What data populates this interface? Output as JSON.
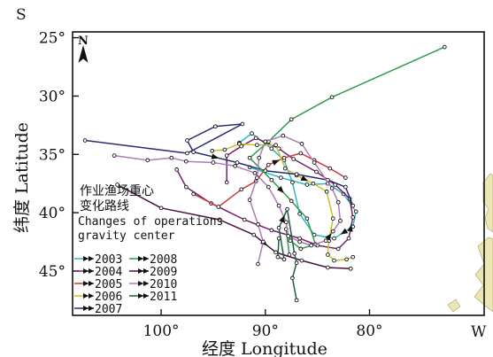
{
  "corner_labels": {
    "top_left": "S",
    "bottom_right": "W",
    "north_arrow": "N"
  },
  "axes": {
    "xlabel": "经度 Longitude",
    "ylabel": "纬度 Latitude",
    "xticks": [
      "100°",
      "90°",
      "80°"
    ],
    "yticks": [
      "25°",
      "30°",
      "35°",
      "40°",
      "45°"
    ]
  },
  "title": {
    "cn_line1": "作业渔场重心",
    "cn_line2": "变化路线",
    "en_line1": "Changes of operations",
    "en_line2": "gravity center"
  },
  "legend_items": [
    {
      "label": "2003",
      "color": "#2fb9c8"
    },
    {
      "label": "2004",
      "color": "#7a1d72"
    },
    {
      "label": "2005",
      "color": "#c83a3a"
    },
    {
      "label": "2006",
      "color": "#c9bf2b"
    },
    {
      "label": "2007",
      "color": "#2a2b72"
    },
    {
      "label": "2008",
      "color": "#2e9e4d"
    },
    {
      "label": "2009",
      "color": "#4a1040"
    },
    {
      "label": "2010",
      "color": "#b07ab9"
    },
    {
      "label": "2011",
      "color": "#1f5e43"
    }
  ],
  "chart_data": {
    "type": "line",
    "xlabel": "经度 Longitude",
    "ylabel": "纬度 Latitude",
    "x_unit": "degrees longitude (axis reversed, increasing leftward)",
    "y_unit": "degrees latitude (axis reversed, increasing downward)",
    "xlim": [
      108.5,
      69.0
    ],
    "ylim": [
      24.5,
      48.8
    ],
    "series": [
      {
        "name": "2003",
        "color": "#2fb9c8",
        "points": [
          [
            91.5,
            36.1
          ],
          [
            88.5,
            37.0
          ],
          [
            86.0,
            37.6
          ],
          [
            84.0,
            37.5
          ],
          [
            82.5,
            38.4
          ],
          [
            81.3,
            39.9
          ],
          [
            81.6,
            41.2
          ],
          [
            83.4,
            42.2
          ],
          [
            85.3,
            41.9
          ],
          [
            86.7,
            40.1
          ],
          [
            87.4,
            37.4
          ],
          [
            88.2,
            35.5
          ],
          [
            89.4,
            34.5
          ],
          [
            91.3,
            33.2
          ],
          [
            92.5,
            34.0
          ]
        ]
      },
      {
        "name": "2004",
        "color": "#7a1d72",
        "points": [
          [
            98.5,
            36.3
          ],
          [
            97.6,
            37.8
          ],
          [
            95.2,
            39.2
          ],
          [
            92.0,
            40.6
          ],
          [
            89.4,
            41.5
          ],
          [
            86.7,
            42.2
          ],
          [
            85.0,
            42.8
          ],
          [
            83.0,
            43.1
          ],
          [
            82.0,
            42.2
          ],
          [
            81.6,
            40.4
          ],
          [
            81.9,
            38.8
          ],
          [
            83.3,
            37.6
          ],
          [
            85.1,
            36.5
          ],
          [
            87.3,
            35.4
          ],
          [
            88.7,
            34.5
          ],
          [
            90.9,
            33.6
          ],
          [
            92.3,
            34.3
          ],
          [
            93.7,
            35.1
          ],
          [
            93.7,
            37.4
          ]
        ]
      },
      {
        "name": "2005",
        "color": "#c83a3a",
        "points": [
          [
            96.9,
            38.4
          ],
          [
            94.5,
            39.5
          ],
          [
            92.3,
            38.0
          ],
          [
            90.9,
            37.3
          ],
          [
            89.7,
            35.9
          ],
          [
            88.2,
            35.3
          ],
          [
            86.6,
            34.9
          ],
          [
            85.3,
            35.5
          ],
          [
            83.8,
            36.2
          ],
          [
            82.3,
            37.0
          ]
        ]
      },
      {
        "name": "2006",
        "color": "#c9bf2b",
        "points": [
          [
            95.1,
            34.7
          ],
          [
            93.9,
            34.6
          ],
          [
            92.5,
            34.1
          ],
          [
            90.8,
            34.2
          ],
          [
            89.0,
            34.2
          ],
          [
            88.1,
            36.2
          ],
          [
            87.0,
            36.8
          ],
          [
            85.4,
            37.5
          ],
          [
            84.1,
            38.2
          ],
          [
            83.5,
            40.5
          ],
          [
            83.9,
            42.4
          ],
          [
            84.0,
            43.6
          ],
          [
            83.4,
            44.1
          ],
          [
            82.2,
            44.0
          ],
          [
            81.6,
            43.8
          ]
        ]
      },
      {
        "name": "2007",
        "color": "#2a2b72",
        "points": [
          [
            107.3,
            33.8
          ],
          [
            97.5,
            34.9
          ],
          [
            92.2,
            32.4
          ],
          [
            94.8,
            32.6
          ],
          [
            97.5,
            33.8
          ],
          [
            96.9,
            34.8
          ],
          [
            92.7,
            35.7
          ],
          [
            90.0,
            36.4
          ],
          [
            87.0,
            36.7
          ],
          [
            84.0,
            37.2
          ],
          [
            82.3,
            37.8
          ],
          [
            81.6,
            39.4
          ]
        ]
      },
      {
        "name": "2008",
        "color": "#2e9e4d",
        "points": [
          [
            72.8,
            25.8
          ],
          [
            83.6,
            30.1
          ],
          [
            87.5,
            32.0
          ],
          [
            89.7,
            33.9
          ],
          [
            91.5,
            35.3
          ],
          [
            89.4,
            37.2
          ],
          [
            87.5,
            39.0
          ],
          [
            86.0,
            40.5
          ],
          [
            85.2,
            42.7
          ],
          [
            86.6,
            43.1
          ],
          [
            87.6,
            42.4
          ],
          [
            88.0,
            41.4
          ],
          [
            87.7,
            43.6
          ]
        ]
      },
      {
        "name": "2009",
        "color": "#4a1040",
        "points": [
          [
            104.2,
            37.6
          ],
          [
            100.0,
            39.6
          ],
          [
            94.4,
            40.6
          ],
          [
            91.1,
            41.9
          ],
          [
            89.0,
            43.4
          ],
          [
            86.5,
            44.1
          ],
          [
            84.0,
            44.7
          ],
          [
            81.8,
            44.8
          ]
        ]
      },
      {
        "name": "2010",
        "color": "#b07ab9",
        "points": [
          [
            104.5,
            35.1
          ],
          [
            101.3,
            35.5
          ],
          [
            99.0,
            35.3
          ],
          [
            97.6,
            35.6
          ],
          [
            95.0,
            35.7
          ],
          [
            92.9,
            36.0
          ],
          [
            91.0,
            36.6
          ],
          [
            89.7,
            37.8
          ],
          [
            88.7,
            39.4
          ],
          [
            88.0,
            40.8
          ],
          [
            87.8,
            42.0
          ],
          [
            86.7,
            42.5
          ],
          [
            85.6,
            42.8
          ],
          [
            84.2,
            42.4
          ],
          [
            83.5,
            41.6
          ],
          [
            82.8,
            40.7
          ],
          [
            83.0,
            39.1
          ],
          [
            83.6,
            37.9
          ],
          [
            85.3,
            35.7
          ],
          [
            86.5,
            34.1
          ],
          [
            88.3,
            33.4
          ],
          [
            90.0,
            33.9
          ],
          [
            90.6,
            35.3
          ],
          [
            90.8,
            37.0
          ],
          [
            91.5,
            38.9
          ],
          [
            90.7,
            41.0
          ],
          [
            90.2,
            42.5
          ],
          [
            90.7,
            44.4
          ]
        ]
      },
      {
        "name": "2011",
        "color": "#1f5e43",
        "points": [
          [
            88.7,
            42.2
          ],
          [
            88.8,
            43.8
          ],
          [
            88.2,
            44.0
          ],
          [
            88.7,
            41.3
          ],
          [
            87.9,
            39.7
          ],
          [
            87.2,
            43.5
          ],
          [
            87.0,
            44.3
          ],
          [
            87.4,
            45.6
          ],
          [
            87.0,
            47.5
          ]
        ]
      }
    ]
  }
}
